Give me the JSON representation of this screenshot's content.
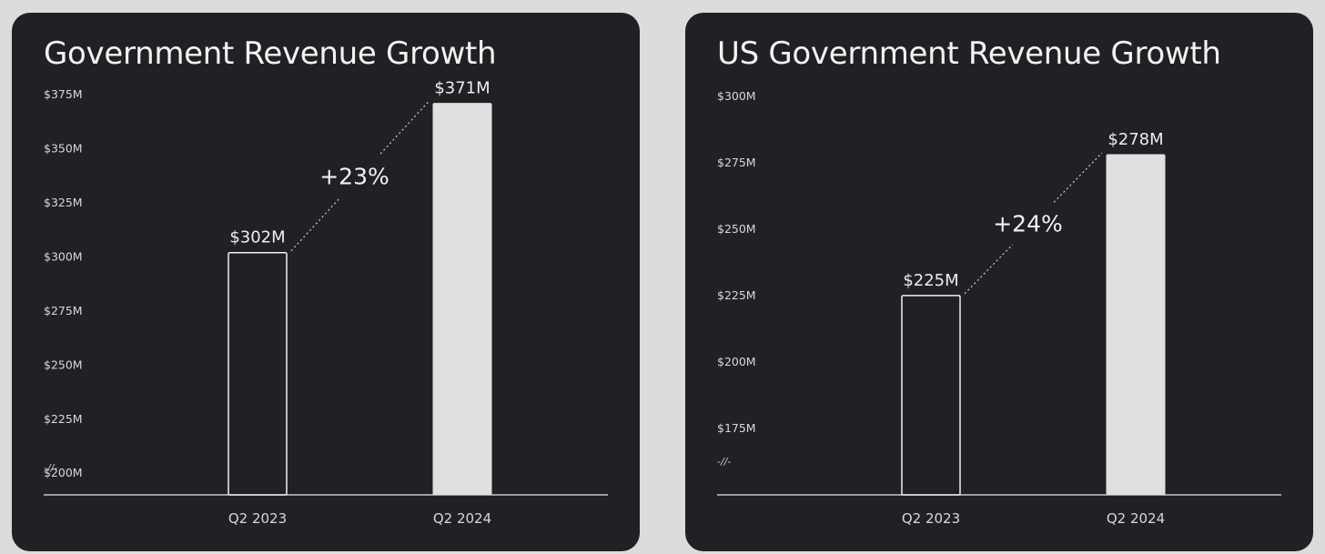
{
  "chart_data": [
    {
      "type": "bar",
      "title": "Government Revenue Growth",
      "categories": [
        "Q2 2023",
        "Q2 2024"
      ],
      "values": [
        302,
        371
      ],
      "value_labels": [
        "$302M",
        "$371M"
      ],
      "unit": "$M",
      "ylim": [
        190,
        378
      ],
      "yticks": [
        200,
        225,
        250,
        275,
        300,
        325,
        350,
        375
      ],
      "ytick_labels": [
        "$200M",
        "$225M",
        "$250M",
        "$275M",
        "$300M",
        "$325M",
        "$350M",
        "$375M"
      ],
      "axis_break": "-//-",
      "growth_label": "+23%",
      "bar_styles": [
        "outline",
        "filled"
      ],
      "grid": false,
      "legend": "none"
    },
    {
      "type": "bar",
      "title": "US Government Revenue Growth",
      "categories": [
        "Q2 2023",
        "Q2 2024"
      ],
      "values": [
        225,
        278
      ],
      "value_labels": [
        "$225M",
        "$278M"
      ],
      "unit": "$M",
      "ylim": [
        150,
        303
      ],
      "yticks": [
        175,
        200,
        225,
        250,
        275,
        300
      ],
      "ytick_labels": [
        "$175M",
        "$200M",
        "$225M",
        "$250M",
        "$275M",
        "$300M"
      ],
      "axis_break": "-//-",
      "growth_label": "+24%",
      "bar_styles": [
        "outline",
        "filled"
      ],
      "grid": false,
      "legend": "none"
    }
  ],
  "colors": {
    "panel_background": "#202124",
    "page_background": "#dcdcdc",
    "bar_fill": "#e0e0e0",
    "bar_outline": "#f0f0f0",
    "text": "#f2f2f2",
    "axis": "#e6e6e6"
  }
}
